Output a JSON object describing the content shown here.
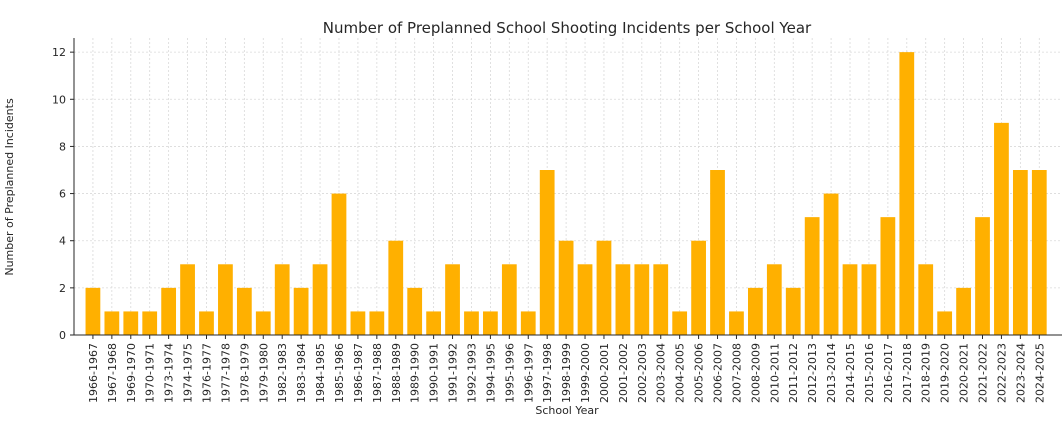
{
  "chart_data": {
    "type": "bar",
    "title": "Number of Preplanned School Shooting Incidents per School Year",
    "xlabel": "School Year",
    "ylabel": "Number of Preplanned Incidents",
    "ylim": [
      0,
      12.6
    ],
    "yticks": [
      0,
      2,
      4,
      6,
      8,
      10,
      12
    ],
    "grid": true,
    "bar_color": "#ffb000",
    "categories": [
      "1966-1967",
      "1967-1968",
      "1969-1970",
      "1970-1971",
      "1973-1974",
      "1974-1975",
      "1976-1977",
      "1977-1978",
      "1978-1979",
      "1979-1980",
      "1982-1983",
      "1983-1984",
      "1984-1985",
      "1985-1986",
      "1986-1987",
      "1987-1988",
      "1988-1989",
      "1989-1990",
      "1990-1991",
      "1991-1992",
      "1992-1993",
      "1994-1995",
      "1995-1996",
      "1996-1997",
      "1997-1998",
      "1998-1999",
      "1999-2000",
      "2000-2001",
      "2001-2002",
      "2002-2003",
      "2003-2004",
      "2004-2005",
      "2005-2006",
      "2006-2007",
      "2007-2008",
      "2008-2009",
      "2010-2011",
      "2011-2012",
      "2012-2013",
      "2013-2014",
      "2014-2015",
      "2015-2016",
      "2016-2017",
      "2017-2018",
      "2018-2019",
      "2019-2020",
      "2020-2021",
      "2021-2022",
      "2022-2023",
      "2023-2024",
      "2024-2025"
    ],
    "values": [
      2,
      1,
      1,
      1,
      2,
      3,
      1,
      3,
      2,
      1,
      3,
      2,
      3,
      6,
      1,
      1,
      4,
      2,
      1,
      3,
      1,
      1,
      3,
      1,
      7,
      4,
      3,
      4,
      3,
      3,
      3,
      1,
      4,
      7,
      1,
      2,
      3,
      2,
      5,
      6,
      3,
      3,
      5,
      12,
      3,
      1,
      2,
      5,
      9,
      7,
      7
    ]
  }
}
